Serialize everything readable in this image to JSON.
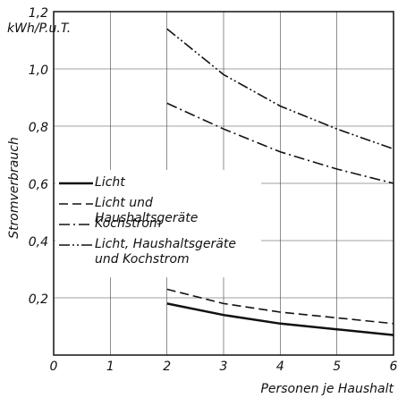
{
  "chart_data": {
    "type": "line",
    "y_label": "Stromverbrauch",
    "y_unit": "kWh/P.u.T.",
    "x_label": "Personen je Haushalt",
    "x": [
      2,
      3,
      4,
      5,
      6
    ],
    "xlim": [
      0,
      6
    ],
    "xticks": [
      0,
      1,
      2,
      3,
      4,
      5,
      6
    ],
    "ylim": [
      0,
      1.2
    ],
    "yticks": [
      {
        "value": 0.2,
        "label": "0,2"
      },
      {
        "value": 0.4,
        "label": "0,4"
      },
      {
        "value": 0.6,
        "label": "0,6"
      },
      {
        "value": 0.8,
        "label": "0,8"
      },
      {
        "value": 1.0,
        "label": "1,0"
      },
      {
        "value": 1.2,
        "label": "1,2"
      }
    ],
    "grid": true,
    "series": [
      {
        "name": "Licht",
        "color": "#111111",
        "dash": "solid",
        "values": [
          0.18,
          0.14,
          0.11,
          0.09,
          0.07
        ]
      },
      {
        "name": "Licht und Haushaltsgeräte",
        "color": "#111111",
        "dash": "dashed",
        "values": [
          0.23,
          0.18,
          0.15,
          0.13,
          0.11
        ]
      },
      {
        "name": "Kochstrom",
        "color": "#111111",
        "dash": "dashdot",
        "values": [
          0.88,
          0.79,
          0.71,
          0.65,
          0.6
        ]
      },
      {
        "name": "Licht, Haushaltsgeräte und Kochstrom",
        "color": "#111111",
        "dash": "dashdotdot",
        "values": [
          1.14,
          0.98,
          0.87,
          0.79,
          0.72
        ]
      }
    ]
  }
}
